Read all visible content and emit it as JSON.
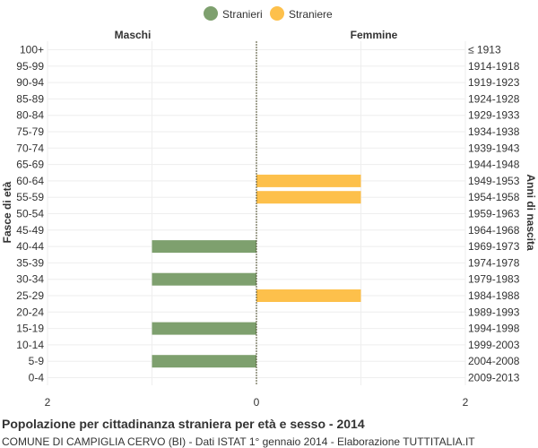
{
  "chart_data": {
    "type": "bar",
    "orientation": "horizontal-population-pyramid",
    "title": "Popolazione per cittadinanza straniera per età e sesso - 2014",
    "subtitle": "COMUNE DI CAMPIGLIA CERVO (BI) - Dati ISTAT 1° gennaio 2014 - Elaborazione TUTTITALIA.IT",
    "left_header": "Maschi",
    "right_header": "Femmine",
    "ylabel_left": "Fasce di età",
    "ylabel_right": "Anni di nascita",
    "xlim": [
      -2,
      2
    ],
    "x_ticks": [
      "2",
      "0",
      "2"
    ],
    "grid": true,
    "legend_position": "top-center",
    "series": [
      {
        "name": "Stranieri",
        "color": "#7ea06e",
        "side": "left"
      },
      {
        "name": "Straniere",
        "color": "#fdc04b",
        "side": "right"
      }
    ],
    "categories": [
      "100+",
      "95-99",
      "90-94",
      "85-89",
      "80-84",
      "75-79",
      "70-74",
      "65-69",
      "60-64",
      "55-59",
      "50-54",
      "45-49",
      "40-44",
      "35-39",
      "30-34",
      "25-29",
      "20-24",
      "15-19",
      "10-14",
      "5-9",
      "0-4"
    ],
    "birth_years": [
      "≤ 1913",
      "1914-1918",
      "1919-1923",
      "1924-1928",
      "1929-1933",
      "1934-1938",
      "1939-1943",
      "1944-1948",
      "1949-1953",
      "1954-1958",
      "1959-1963",
      "1964-1968",
      "1969-1973",
      "1974-1978",
      "1979-1983",
      "1984-1988",
      "1989-1993",
      "1994-1998",
      "1999-2003",
      "2004-2008",
      "2009-2013"
    ],
    "males": [
      0,
      0,
      0,
      0,
      0,
      0,
      0,
      0,
      0,
      0,
      0,
      0,
      1,
      0,
      1,
      0,
      0,
      1,
      0,
      1,
      0
    ],
    "females": [
      0,
      0,
      0,
      0,
      0,
      0,
      0,
      0,
      1,
      1,
      0,
      0,
      0,
      0,
      0,
      1,
      0,
      0,
      0,
      0,
      0
    ]
  }
}
